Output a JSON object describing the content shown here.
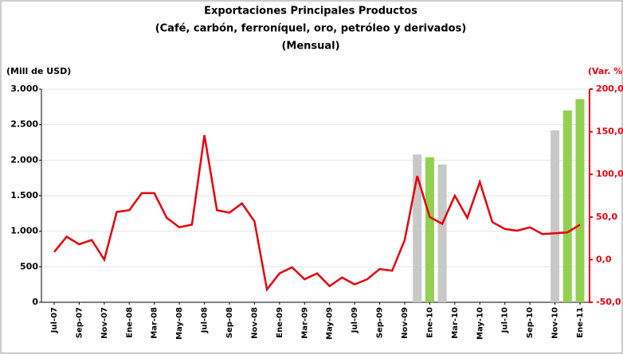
{
  "chart_data": {
    "type": "bar-line",
    "title": [
      "Exportaciones Principales Productos",
      "(Café, carbón, ferroníquel, oro, petróleo y derivados)",
      "(Mensual)"
    ],
    "y_label": "(Mill de USD)",
    "y2_label": "(Var. % anual)",
    "categories": [
      "Jul-07",
      null,
      "Sep-07",
      null,
      "Nov-07",
      null,
      "Ene-08",
      null,
      "Mar-08",
      null,
      "May-08",
      null,
      "Jul-08",
      null,
      "Sep-08",
      null,
      "Nov-08",
      null,
      "Ene-09",
      null,
      "Mar-09",
      null,
      "May-09",
      null,
      "Jul-09",
      null,
      "Sep-09",
      null,
      "Nov-09",
      null,
      "Ene-10",
      null,
      "Mar-10",
      null,
      "May-10",
      null,
      "Jul-10",
      null,
      "Sep-10",
      null,
      "Nov-10",
      null,
      "Ene-11"
    ],
    "series": [
      {
        "type": "bar",
        "values": [
          null,
          null,
          null,
          null,
          null,
          null,
          null,
          null,
          null,
          null,
          null,
          null,
          null,
          null,
          null,
          null,
          null,
          null,
          null,
          null,
          null,
          null,
          null,
          null,
          null,
          null,
          null,
          null,
          null,
          2080,
          2040,
          1940,
          null,
          null,
          null,
          null,
          null,
          null,
          null,
          null,
          2420,
          2700,
          2860
        ],
        "colors": [
          null,
          null,
          null,
          null,
          null,
          null,
          null,
          null,
          null,
          null,
          null,
          null,
          null,
          null,
          null,
          null,
          null,
          null,
          null,
          null,
          null,
          null,
          null,
          null,
          null,
          null,
          null,
          null,
          null,
          "#c8c8c8",
          "#92d050",
          "#c8c8c8",
          null,
          null,
          null,
          null,
          null,
          null,
          null,
          null,
          "#c8c8c8",
          "#92d050",
          "#92d050"
        ]
      },
      {
        "type": "line",
        "axis": "y2",
        "color": "#e8000b",
        "values": [
          9,
          27,
          18,
          23,
          0,
          56,
          58,
          78,
          78,
          49,
          38,
          41,
          146,
          58,
          55,
          66,
          45,
          -35,
          -16,
          -9,
          -23,
          -16,
          -31,
          -21,
          -29,
          -23,
          -11,
          -13,
          23,
          98,
          50,
          42,
          75,
          49,
          91,
          44,
          36,
          34,
          38,
          30,
          31,
          32,
          41
        ]
      }
    ],
    "ylim": [
      0,
      3000
    ],
    "yticks": [
      0,
      500,
      {
        "value": 1000,
        "label": "1.000"
      },
      {
        "value": 1500,
        "label": "1.500"
      },
      {
        "value": 2000,
        "label": "2.000"
      },
      {
        "value": 2500,
        "label": "2.500"
      },
      {
        "value": 3000,
        "label": "3.000"
      }
    ],
    "y2lim": [
      -50,
      200
    ],
    "y2ticks": [
      {
        "value": -50,
        "label": "-50,0"
      },
      {
        "value": 0,
        "label": "0,0"
      },
      {
        "value": 50,
        "label": "50,0"
      },
      {
        "value": 100,
        "label": "100,0"
      },
      {
        "value": 150,
        "label": "150,0"
      },
      {
        "value": 200,
        "label": "200,0"
      }
    ],
    "grid": true,
    "y2_color": "#e8000b"
  }
}
